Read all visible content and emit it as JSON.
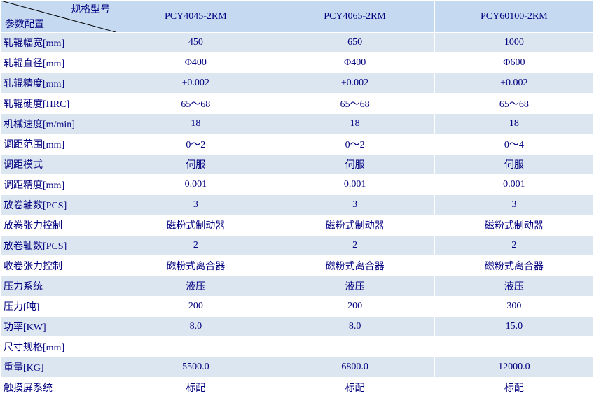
{
  "header": {
    "diag_top": "规格型号",
    "diag_bottom": "参数配置",
    "models": [
      "PCY4045-2RM",
      "PCY4065-2RM",
      "PCY60100-2RM"
    ]
  },
  "rows": [
    {
      "param": "轧辊幅宽[mm]",
      "vals": [
        "450",
        "650",
        "1000"
      ]
    },
    {
      "param": "轧辊直径[mm]",
      "vals": [
        "Φ400",
        "Φ400",
        "Φ600"
      ]
    },
    {
      "param": "轧辊精度[mm]",
      "vals": [
        "±0.002",
        "±0.002",
        "±0.002"
      ]
    },
    {
      "param": "轧辊硬度[HRC]",
      "vals": [
        "65～68",
        "65～68",
        "65～68"
      ]
    },
    {
      "param": "机械速度[m/min]",
      "vals": [
        "18",
        "18",
        "18"
      ]
    },
    {
      "param": "调距范围[mm]",
      "vals": [
        "0～2",
        "0～2",
        "0～4"
      ]
    },
    {
      "param": "调距模式",
      "vals": [
        "伺服",
        "伺服",
        "伺服"
      ]
    },
    {
      "param": "调距精度[mm]",
      "vals": [
        "0.001",
        "0.001",
        "0.001"
      ]
    },
    {
      "param": "放卷轴数[PCS]",
      "vals": [
        "3",
        "3",
        "3"
      ]
    },
    {
      "param": "放卷张力控制",
      "vals": [
        "磁粉式制动器",
        "磁粉式制动器",
        "磁粉式制动器"
      ]
    },
    {
      "param": "放卷轴数[PCS]",
      "vals": [
        "2",
        "2",
        "2"
      ]
    },
    {
      "param": "收卷张力控制",
      "vals": [
        "磁粉式离合器",
        "磁粉式离合器",
        "磁粉式离合器"
      ]
    },
    {
      "param": "压力系统",
      "vals": [
        "液压",
        "液压",
        "液压"
      ]
    },
    {
      "param": "压力[吨]",
      "vals": [
        "200",
        "200",
        "300"
      ]
    },
    {
      "param": "功率[KW]",
      "vals": [
        "8.0",
        "8.0",
        "15.0"
      ]
    },
    {
      "param": "尺寸规格[mm]",
      "vals": [
        "",
        "",
        ""
      ]
    },
    {
      "param": "重量[KG]",
      "vals": [
        "5500.0",
        "6800.0",
        "12000.0"
      ]
    },
    {
      "param": "触摸屏系统",
      "vals": [
        "标配",
        "标配",
        "标配"
      ]
    }
  ],
  "style": {
    "header_bg": "#c5d9f1",
    "row_odd_bg": "#dce6f1",
    "row_even_bg": "#ffffff",
    "border_color": "#ffffff",
    "text_color": "#000080",
    "font_family": "SimSun",
    "font_size": 14,
    "diag_line_color": "#000000"
  }
}
